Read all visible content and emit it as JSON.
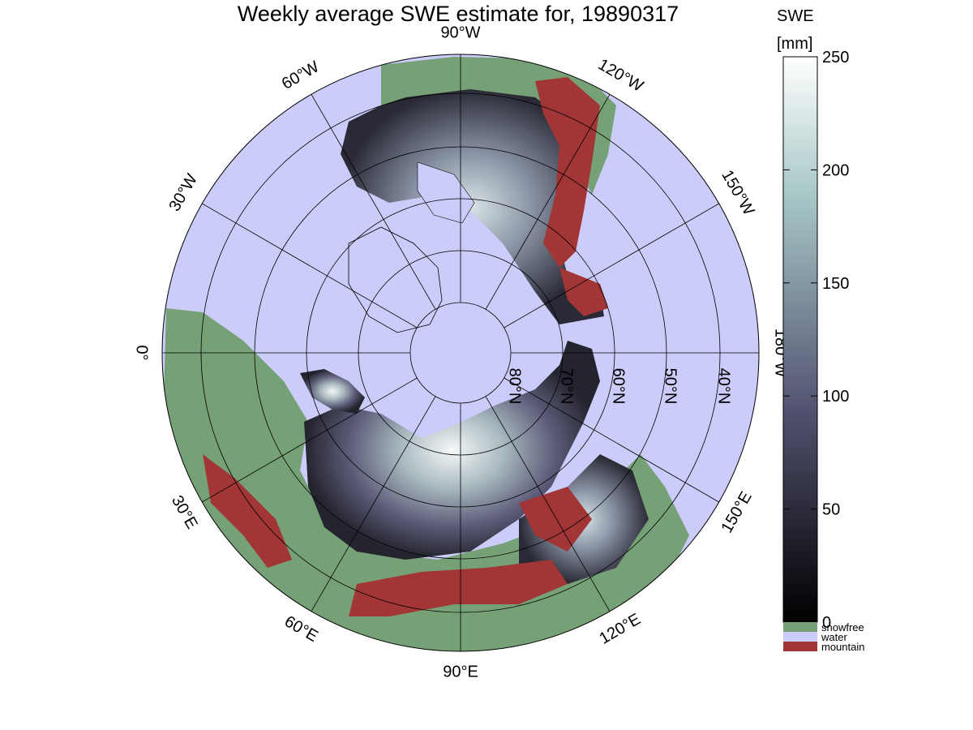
{
  "title": "Weekly average SWE estimate for, 19890317",
  "colorbar": {
    "title_line1": "SWE",
    "title_line2": "[mm]",
    "min": 0,
    "max": 250,
    "ticks": [
      "0",
      "50",
      "100",
      "150",
      "200",
      "250"
    ],
    "colormap": "bone",
    "categories": [
      {
        "label": "snowfree",
        "color": "#76a075"
      },
      {
        "label": "water",
        "color": "#ccccfa"
      },
      {
        "label": "mountain",
        "color": "#a23535"
      }
    ]
  },
  "map": {
    "projection": "north polar azimuthal",
    "ocean_color": "#ccccfa",
    "lon_labels": [
      {
        "text": "90°W",
        "base": "90",
        "unit": "W",
        "angle": -90
      },
      {
        "text": "120°W",
        "base": "120",
        "unit": "W",
        "angle": -60
      },
      {
        "text": "150°W",
        "base": "150",
        "unit": "W",
        "angle": -30
      },
      {
        "text": "180°W",
        "base": "180",
        "unit": "W",
        "angle": 0
      },
      {
        "text": "150°E",
        "base": "150",
        "unit": "E",
        "angle": 30
      },
      {
        "text": "120°E",
        "base": "120",
        "unit": "E",
        "angle": 60
      },
      {
        "text": "90°E",
        "base": "90",
        "unit": "E",
        "angle": 90
      },
      {
        "text": "60°E",
        "base": "60",
        "unit": "E",
        "angle": 120
      },
      {
        "text": "30°E",
        "base": "30",
        "unit": "E",
        "angle": 150
      },
      {
        "text": "0°",
        "base": "0",
        "unit": "",
        "angle": 180
      },
      {
        "text": "30°W",
        "base": "30",
        "unit": "W",
        "angle": -150
      },
      {
        "text": "60°W",
        "base": "60",
        "unit": "W",
        "angle": -120
      }
    ],
    "lat_labels": [
      {
        "text": "80°N",
        "base": "80",
        "unit": "N",
        "lat": 80
      },
      {
        "text": "70°N",
        "base": "70",
        "unit": "N",
        "lat": 70
      },
      {
        "text": "60°N",
        "base": "60",
        "unit": "N",
        "lat": 60
      },
      {
        "text": "50°N",
        "base": "50",
        "unit": "N",
        "lat": 50
      },
      {
        "text": "40°N",
        "base": "40",
        "unit": "N",
        "lat": 40
      }
    ]
  }
}
